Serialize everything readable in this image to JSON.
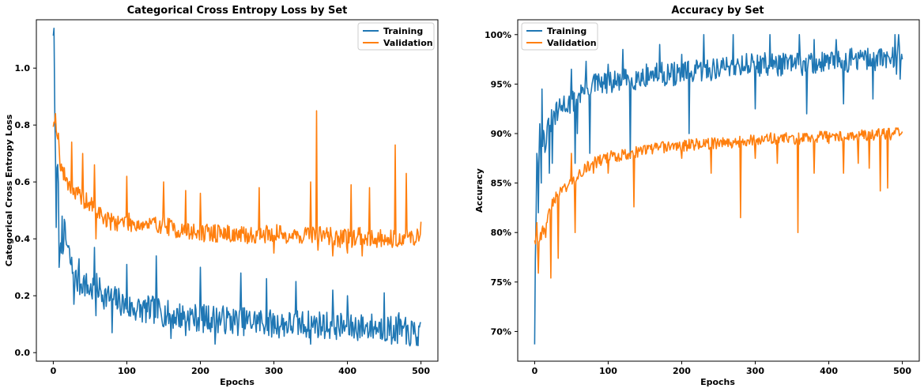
{
  "chart_data": [
    {
      "type": "line",
      "title": "Categorical Cross Entropy Loss by Set",
      "xlabel": "Epochs",
      "ylabel": "Categorical Cross Entropy Loss",
      "xlim": [
        -23,
        523
      ],
      "ylim": [
        -0.03,
        1.17
      ],
      "xticks": [
        0,
        100,
        200,
        300,
        400,
        500
      ],
      "yticks": [
        0.0,
        0.2,
        0.4,
        0.6,
        0.8,
        1.0
      ],
      "ytick_labels": [
        "0.0",
        "0.2",
        "0.4",
        "0.6",
        "0.8",
        "1.0"
      ],
      "legend_position": "top-right",
      "grid": false,
      "series": [
        {
          "name": "Training",
          "color": "#1f77b4",
          "anchors": [
            [
              0,
              1.14
            ],
            [
              2,
              0.85
            ],
            [
              4,
              0.44
            ],
            [
              6,
              0.65
            ],
            [
              8,
              0.45
            ],
            [
              10,
              0.35
            ],
            [
              15,
              0.42
            ],
            [
              20,
              0.36
            ],
            [
              25,
              0.3
            ],
            [
              30,
              0.26
            ],
            [
              35,
              0.24
            ],
            [
              40,
              0.25
            ],
            [
              50,
              0.22
            ],
            [
              60,
              0.23
            ],
            [
              70,
              0.2
            ],
            [
              80,
              0.19
            ],
            [
              90,
              0.18
            ],
            [
              100,
              0.16
            ],
            [
              120,
              0.15
            ],
            [
              140,
              0.15
            ],
            [
              160,
              0.13
            ],
            [
              180,
              0.13
            ],
            [
              200,
              0.12
            ],
            [
              220,
              0.12
            ],
            [
              250,
              0.11
            ],
            [
              280,
              0.11
            ],
            [
              300,
              0.1
            ],
            [
              330,
              0.1
            ],
            [
              360,
              0.1
            ],
            [
              400,
              0.09
            ],
            [
              440,
              0.09
            ],
            [
              470,
              0.08
            ],
            [
              500,
              0.06
            ]
          ],
          "noise_amplitude": 0.05,
          "seed": 7,
          "spikes": [
            [
              1,
              1.14
            ],
            [
              2,
              0.85
            ],
            [
              4,
              0.44
            ],
            [
              5,
              0.65
            ],
            [
              8,
              0.3
            ],
            [
              12,
              0.48
            ],
            [
              28,
              0.17
            ],
            [
              35,
              0.33
            ],
            [
              56,
              0.37
            ],
            [
              58,
              0.13
            ],
            [
              80,
              0.07
            ],
            [
              100,
              0.31
            ],
            [
              140,
              0.34
            ],
            [
              160,
              0.05
            ],
            [
              180,
              0.06
            ],
            [
              200,
              0.3
            ],
            [
              220,
              0.03
            ],
            [
              255,
              0.28
            ],
            [
              290,
              0.26
            ],
            [
              330,
              0.25
            ],
            [
              350,
              0.03
            ],
            [
              380,
              0.22
            ],
            [
              400,
              0.2
            ],
            [
              450,
              0.21
            ],
            [
              460,
              0.03
            ],
            [
              470,
              0.14
            ],
            [
              480,
              0.03
            ]
          ]
        },
        {
          "name": "Validation",
          "color": "#ff7f0e",
          "anchors": [
            [
              0,
              0.81
            ],
            [
              2,
              0.84
            ],
            [
              4,
              0.76
            ],
            [
              6,
              0.78
            ],
            [
              8,
              0.72
            ],
            [
              10,
              0.66
            ],
            [
              15,
              0.62
            ],
            [
              20,
              0.6
            ],
            [
              30,
              0.56
            ],
            [
              40,
              0.54
            ],
            [
              50,
              0.52
            ],
            [
              60,
              0.5
            ],
            [
              70,
              0.47
            ],
            [
              80,
              0.46
            ],
            [
              100,
              0.46
            ],
            [
              120,
              0.45
            ],
            [
              150,
              0.45
            ],
            [
              170,
              0.43
            ],
            [
              200,
              0.42
            ],
            [
              230,
              0.42
            ],
            [
              260,
              0.41
            ],
            [
              300,
              0.42
            ],
            [
              330,
              0.41
            ],
            [
              360,
              0.42
            ],
            [
              390,
              0.4
            ],
            [
              420,
              0.41
            ],
            [
              460,
              0.4
            ],
            [
              500,
              0.41
            ]
          ],
          "noise_amplitude": 0.032,
          "seed": 19,
          "spikes": [
            [
              1,
              0.81
            ],
            [
              3,
              0.84
            ],
            [
              25,
              0.74
            ],
            [
              40,
              0.7
            ],
            [
              56,
              0.66
            ],
            [
              58,
              0.4
            ],
            [
              100,
              0.62
            ],
            [
              150,
              0.6
            ],
            [
              180,
              0.57
            ],
            [
              200,
              0.56
            ],
            [
              280,
              0.58
            ],
            [
              300,
              0.35
            ],
            [
              350,
              0.6
            ],
            [
              358,
              0.85
            ],
            [
              360,
              0.36
            ],
            [
              380,
              0.34
            ],
            [
              400,
              0.35
            ],
            [
              405,
              0.59
            ],
            [
              406,
              0.37
            ],
            [
              420,
              0.34
            ],
            [
              430,
              0.58
            ],
            [
              440,
              0.37
            ],
            [
              465,
              0.73
            ],
            [
              470,
              0.38
            ],
            [
              480,
              0.63
            ],
            [
              490,
              0.38
            ],
            [
              500,
              0.46
            ]
          ]
        }
      ]
    },
    {
      "type": "line",
      "title": "Accuracy by Set",
      "xlabel": "Epochs",
      "ylabel": "Accuracy",
      "xlim": [
        -23,
        523
      ],
      "ylim": [
        0.67,
        1.015
      ],
      "xticks": [
        0,
        100,
        200,
        300,
        400,
        500
      ],
      "yticks": [
        0.7,
        0.75,
        0.8,
        0.85,
        0.9,
        0.95,
        1.0
      ],
      "ytick_labels": [
        "70%",
        "75%",
        "80%",
        "85%",
        "90%",
        "95%",
        "100%"
      ],
      "legend_position": "top-left",
      "grid": false,
      "series": [
        {
          "name": "Training",
          "color": "#1f77b4",
          "anchors": [
            [
              0,
              0.69
            ],
            [
              1,
              0.78
            ],
            [
              2,
              0.87
            ],
            [
              4,
              0.88
            ],
            [
              6,
              0.89
            ],
            [
              8,
              0.88
            ],
            [
              10,
              0.9
            ],
            [
              15,
              0.89
            ],
            [
              20,
              0.91
            ],
            [
              30,
              0.92
            ],
            [
              40,
              0.93
            ],
            [
              50,
              0.93
            ],
            [
              60,
              0.94
            ],
            [
              80,
              0.95
            ],
            [
              100,
              0.95
            ],
            [
              130,
              0.955
            ],
            [
              160,
              0.96
            ],
            [
              200,
              0.96
            ],
            [
              240,
              0.965
            ],
            [
              280,
              0.97
            ],
            [
              320,
              0.97
            ],
            [
              360,
              0.97
            ],
            [
              400,
              0.972
            ],
            [
              440,
              0.975
            ],
            [
              470,
              0.975
            ],
            [
              500,
              0.98
            ]
          ],
          "noise_amplitude": 0.012,
          "seed": 31,
          "spikes": [
            [
              0,
              0.687
            ],
            [
              2,
              0.82
            ],
            [
              3,
              0.88
            ],
            [
              5,
              0.82
            ],
            [
              7,
              0.91
            ],
            [
              9,
              0.85
            ],
            [
              10,
              0.945
            ],
            [
              20,
              0.86
            ],
            [
              24,
              0.87
            ],
            [
              50,
              0.965
            ],
            [
              55,
              0.87
            ],
            [
              58,
              0.9
            ],
            [
              70,
              0.973
            ],
            [
              75,
              0.88
            ],
            [
              100,
              0.97
            ],
            [
              120,
              0.985
            ],
            [
              130,
              0.875
            ],
            [
              170,
              0.99
            ],
            [
              200,
              0.98
            ],
            [
              210,
              0.9
            ],
            [
              230,
              1.0
            ],
            [
              270,
              1.0
            ],
            [
              300,
              0.925
            ],
            [
              320,
              1.0
            ],
            [
              360,
              1.0
            ],
            [
              370,
              0.92
            ],
            [
              380,
              0.995
            ],
            [
              410,
              0.995
            ],
            [
              420,
              0.93
            ],
            [
              460,
              0.935
            ],
            [
              490,
              1.0
            ],
            [
              492,
              0.96
            ],
            [
              495,
              1.0
            ],
            [
              497,
              0.955
            ],
            [
              500,
              0.975
            ]
          ]
        },
        {
          "name": "Validation",
          "color": "#ff7f0e",
          "anchors": [
            [
              0,
              0.792
            ],
            [
              4,
              0.79
            ],
            [
              10,
              0.8
            ],
            [
              20,
              0.82
            ],
            [
              30,
              0.84
            ],
            [
              40,
              0.845
            ],
            [
              50,
              0.85
            ],
            [
              60,
              0.86
            ],
            [
              80,
              0.87
            ],
            [
              100,
              0.876
            ],
            [
              130,
              0.88
            ],
            [
              160,
              0.885
            ],
            [
              200,
              0.888
            ],
            [
              240,
              0.89
            ],
            [
              280,
              0.892
            ],
            [
              320,
              0.895
            ],
            [
              360,
              0.895
            ],
            [
              400,
              0.897
            ],
            [
              440,
              0.898
            ],
            [
              470,
              0.899
            ],
            [
              500,
              0.9
            ]
          ],
          "noise_amplitude": 0.006,
          "seed": 43,
          "spikes": [
            [
              0,
              0.792
            ],
            [
              2,
              0.8
            ],
            [
              3,
              0.81
            ],
            [
              5,
              0.759
            ],
            [
              8,
              0.8
            ],
            [
              15,
              0.795
            ],
            [
              22,
              0.754
            ],
            [
              28,
              0.83
            ],
            [
              32,
              0.774
            ],
            [
              50,
              0.88
            ],
            [
              55,
              0.8
            ],
            [
              60,
              0.86
            ],
            [
              80,
              0.86
            ],
            [
              100,
              0.86
            ],
            [
              135,
              0.826
            ],
            [
              200,
              0.875
            ],
            [
              240,
              0.86
            ],
            [
              280,
              0.815
            ],
            [
              300,
              0.875
            ],
            [
              330,
              0.87
            ],
            [
              358,
              0.8
            ],
            [
              380,
              0.86
            ],
            [
              400,
              0.89
            ],
            [
              420,
              0.86
            ],
            [
              440,
              0.87
            ],
            [
              455,
              0.865
            ],
            [
              470,
              0.842
            ],
            [
              480,
              0.845
            ],
            [
              490,
              0.9
            ],
            [
              500,
              0.902
            ]
          ]
        }
      ]
    }
  ]
}
